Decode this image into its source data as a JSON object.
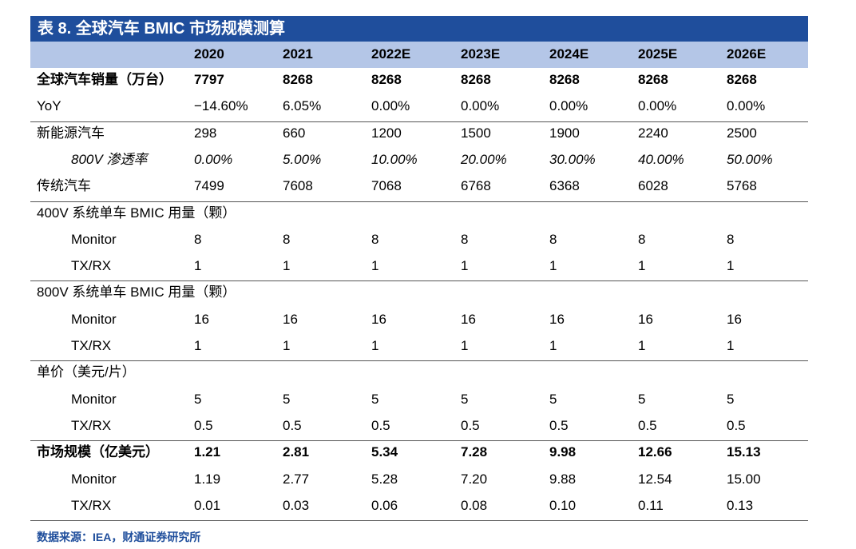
{
  "title": "表 8. 全球汽车 BMIC 市场规模测算",
  "table": {
    "header": [
      "2020",
      "2021",
      "2022E",
      "2023E",
      "2024E",
      "2025E",
      "2026E"
    ],
    "rows": [
      {
        "label": "全球汽车销量（万台）",
        "values": [
          "7797",
          "8268",
          "8268",
          "8268",
          "8268",
          "8268",
          "8268"
        ]
      },
      {
        "label": "YoY",
        "values": [
          "−14.60%",
          "6.05%",
          "0.00%",
          "0.00%",
          "0.00%",
          "0.00%",
          "0.00%"
        ]
      },
      {
        "label": "新能源汽车",
        "values": [
          "298",
          "660",
          "1200",
          "1500",
          "1900",
          "2240",
          "2500"
        ]
      },
      {
        "label": "800V 渗透率",
        "values": [
          "0.00%",
          "5.00%",
          "10.00%",
          "20.00%",
          "30.00%",
          "40.00%",
          "50.00%"
        ]
      },
      {
        "label": "传统汽车",
        "values": [
          "7499",
          "7608",
          "7068",
          "6768",
          "6368",
          "6028",
          "5768"
        ]
      },
      {
        "label": "400V 系统单车 BMIC 用量（颗）"
      },
      {
        "label": "Monitor",
        "values": [
          "8",
          "8",
          "8",
          "8",
          "8",
          "8",
          "8"
        ]
      },
      {
        "label": "TX/RX",
        "values": [
          "1",
          "1",
          "1",
          "1",
          "1",
          "1",
          "1"
        ]
      },
      {
        "label": "800V 系统单车 BMIC 用量（颗）"
      },
      {
        "label": "Monitor",
        "values": [
          "16",
          "16",
          "16",
          "16",
          "16",
          "16",
          "16"
        ]
      },
      {
        "label": "TX/RX",
        "values": [
          "1",
          "1",
          "1",
          "1",
          "1",
          "1",
          "1"
        ]
      },
      {
        "label": "单价（美元/片）"
      },
      {
        "label": "Monitor",
        "values": [
          "5",
          "5",
          "5",
          "5",
          "5",
          "5",
          "5"
        ]
      },
      {
        "label": "TX/RX",
        "values": [
          "0.5",
          "0.5",
          "0.5",
          "0.5",
          "0.5",
          "0.5",
          "0.5"
        ]
      },
      {
        "label": "市场规模（亿美元）",
        "values": [
          "1.21",
          "2.81",
          "5.34",
          "7.28",
          "9.98",
          "12.66",
          "15.13"
        ]
      },
      {
        "label": "Monitor",
        "values": [
          "1.19",
          "2.77",
          "5.28",
          "7.20",
          "9.88",
          "12.54",
          "15.00"
        ]
      },
      {
        "label": "TX/RX",
        "values": [
          "0.01",
          "0.03",
          "0.06",
          "0.08",
          "0.10",
          "0.11",
          "0.13"
        ]
      }
    ]
  },
  "source": "数据来源：IEA，财通证券研究所"
}
